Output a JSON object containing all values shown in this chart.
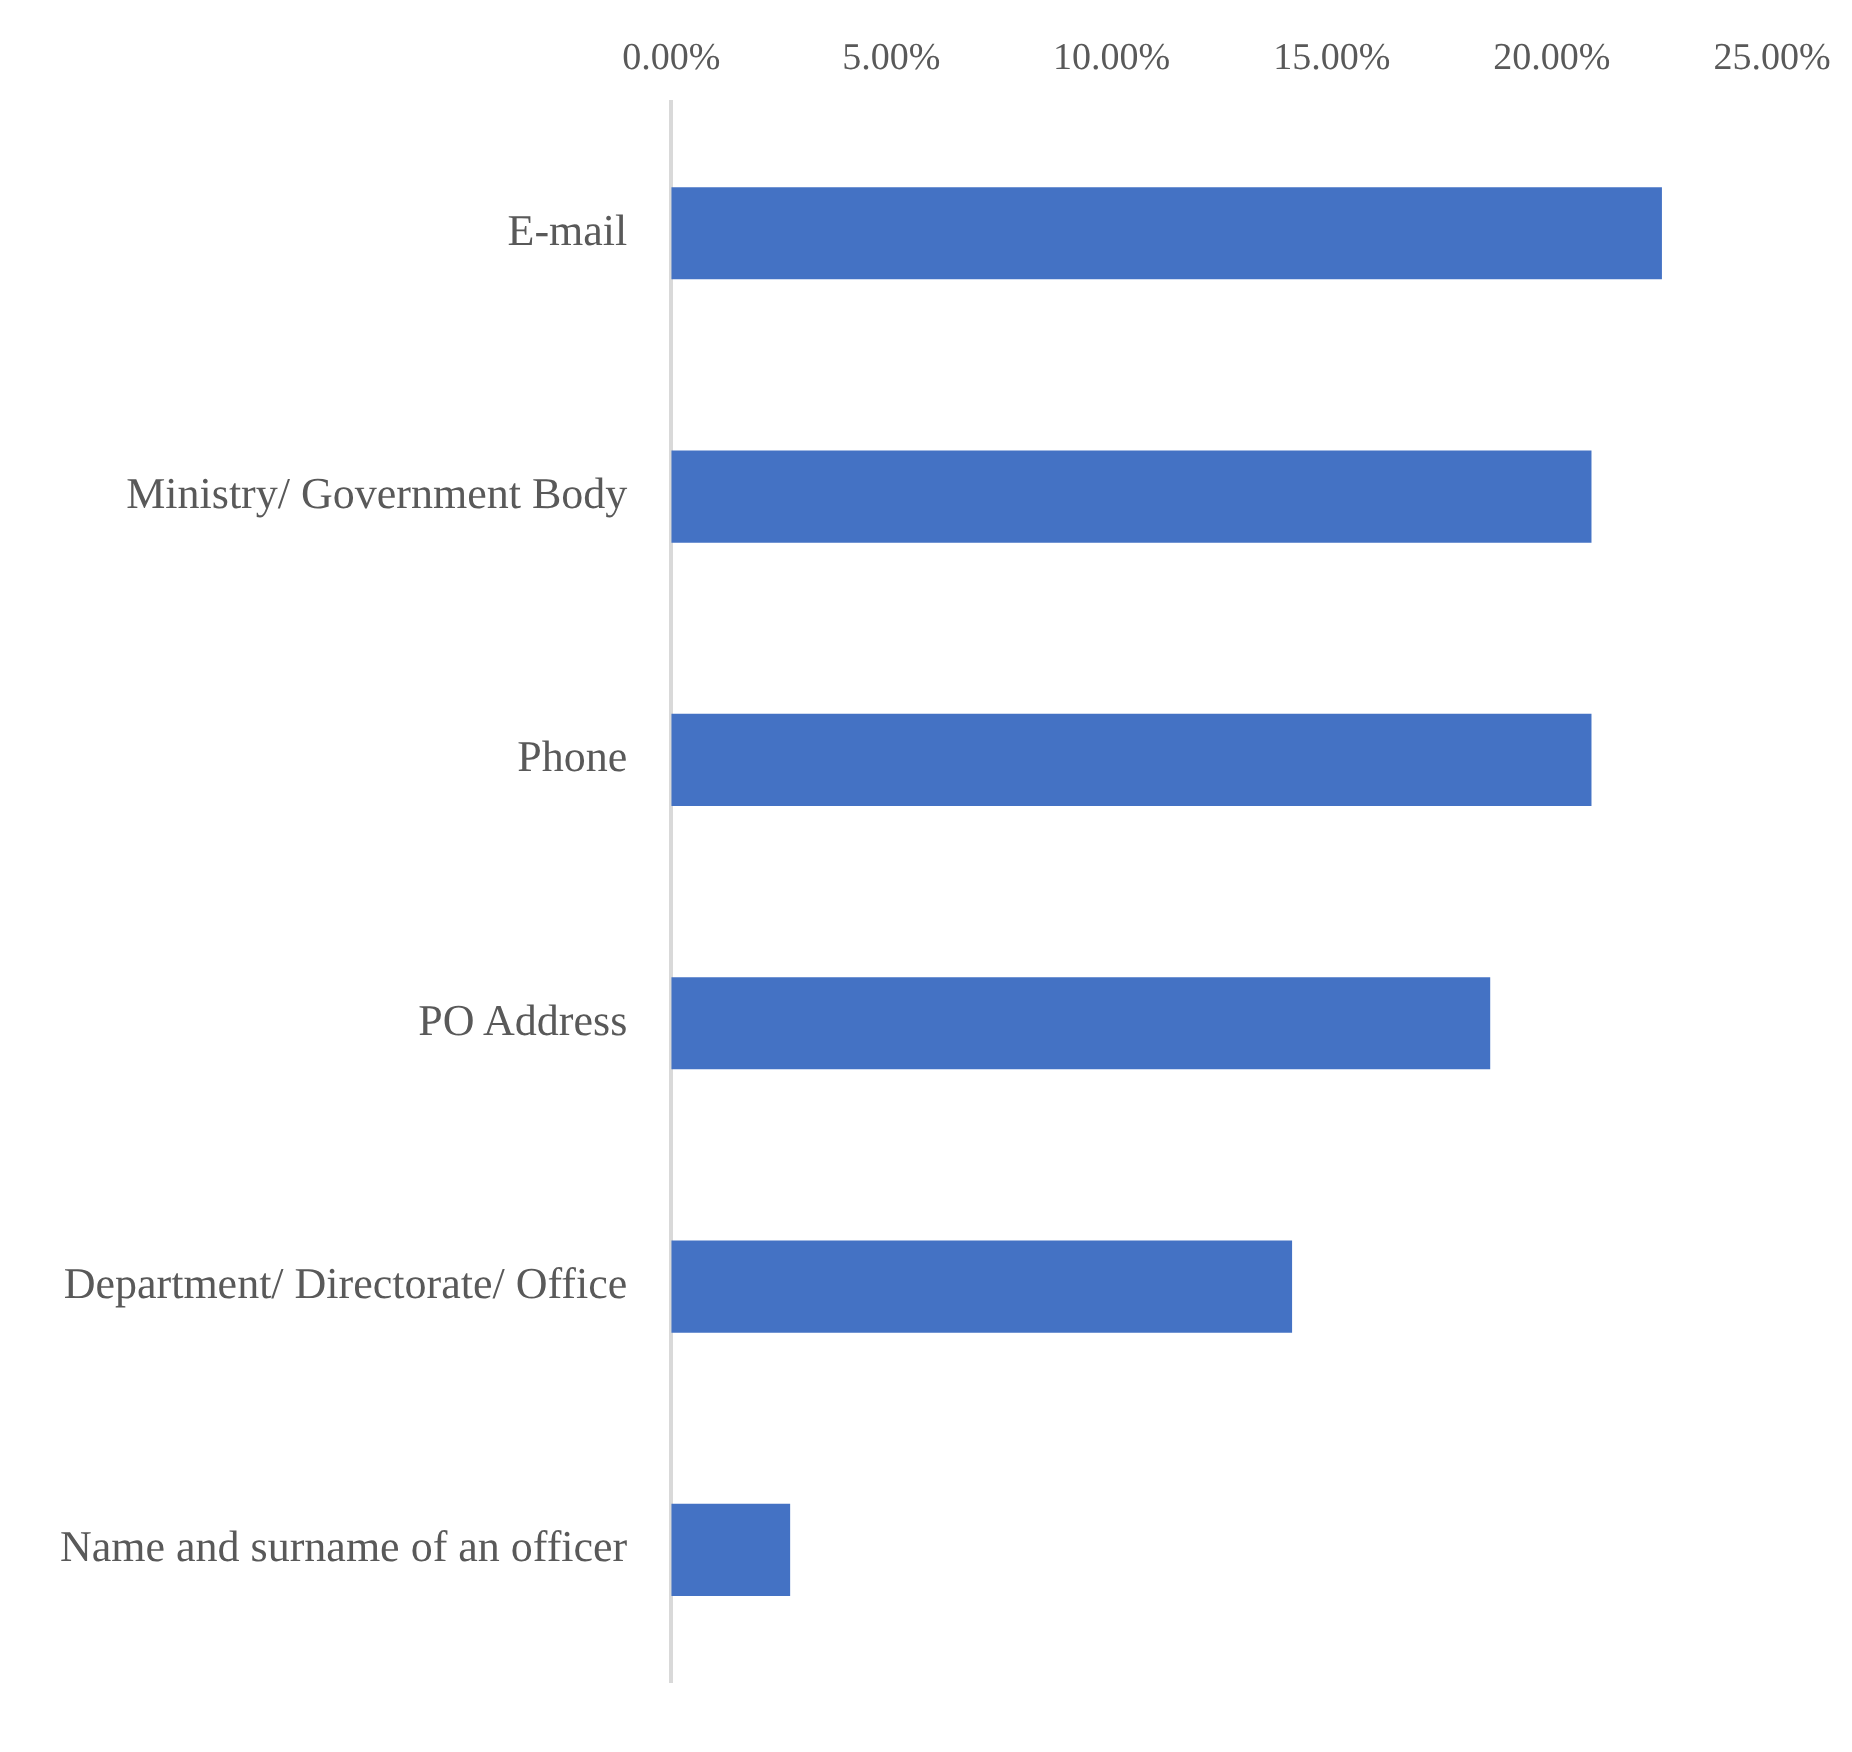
{
  "chart_data": {
    "type": "bar",
    "orientation": "horizontal",
    "categories": [
      "E-mail",
      "Ministry/ Government Body",
      "Phone",
      "PO Address",
      "Department/ Directorate/ Office",
      "Name and surname of an officer"
    ],
    "values": [
      22.5,
      20.9,
      20.9,
      18.6,
      14.1,
      2.7
    ],
    "color": "#4472c4",
    "xlim": [
      0,
      25
    ],
    "xticks": [
      {
        "value": 0,
        "label": "0.00%"
      },
      {
        "value": 5,
        "label": "5.00%"
      },
      {
        "value": 10,
        "label": "10.00%"
      },
      {
        "value": 15,
        "label": "15.00%"
      },
      {
        "value": 20,
        "label": "20.00%"
      },
      {
        "value": 25,
        "label": "25.00%"
      }
    ],
    "grid": false,
    "legend": false
  }
}
